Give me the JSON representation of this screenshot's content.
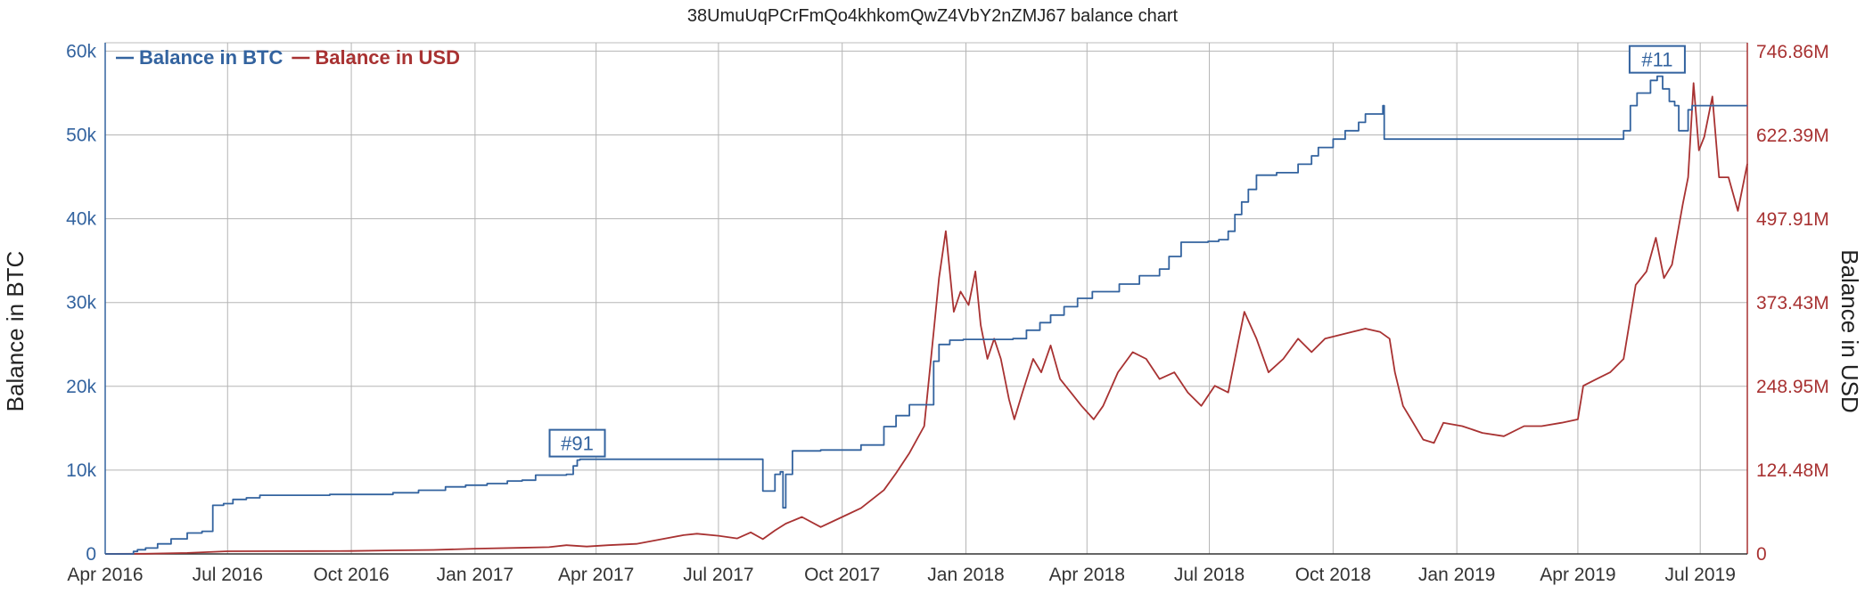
{
  "chart_data": {
    "type": "line",
    "title": "38UmuUqPCrFmQo4khkomQwZ4VbY2nZMJ67 balance chart",
    "x_range": [
      "2016-04-01",
      "2019-08-05"
    ],
    "grid": true,
    "legend_position": "top-left",
    "y_left": {
      "label": "Balance in BTC",
      "range": [
        0,
        61000
      ],
      "ticks": [
        0,
        10000,
        20000,
        30000,
        40000,
        50000,
        60000
      ],
      "tick_labels": [
        "0",
        "10k",
        "20k",
        "30k",
        "40k",
        "50k",
        "60k"
      ],
      "color": "#33639f"
    },
    "y_right": {
      "label": "Balance in USD",
      "range": [
        0,
        760000000
      ],
      "ticks": [
        0,
        124480000,
        248950000,
        373430000,
        497910000,
        622390000,
        746860000
      ],
      "tick_labels": [
        "0",
        "124.48M",
        "248.95M",
        "373.43M",
        "497.91M",
        "622.39M",
        "746.86M"
      ],
      "color": "#a83232"
    },
    "x_ticks": [
      {
        "date": "2016-04-01",
        "label": "Apr 2016"
      },
      {
        "date": "2016-07-01",
        "label": "Jul 2016"
      },
      {
        "date": "2016-10-01",
        "label": "Oct 2016"
      },
      {
        "date": "2017-01-01",
        "label": "Jan 2017"
      },
      {
        "date": "2017-04-01",
        "label": "Apr 2017"
      },
      {
        "date": "2017-07-01",
        "label": "Jul 2017"
      },
      {
        "date": "2017-10-01",
        "label": "Oct 2017"
      },
      {
        "date": "2018-01-01",
        "label": "Jan 2018"
      },
      {
        "date": "2018-04-01",
        "label": "Apr 2018"
      },
      {
        "date": "2018-07-01",
        "label": "Jul 2018"
      },
      {
        "date": "2018-10-01",
        "label": "Oct 2018"
      },
      {
        "date": "2019-01-01",
        "label": "Jan 2019"
      },
      {
        "date": "2019-04-01",
        "label": "Apr 2019"
      },
      {
        "date": "2019-07-01",
        "label": "Jul 2019"
      }
    ],
    "series": [
      {
        "name": "Balance in BTC",
        "axis": "left",
        "color": "#33639f",
        "step": true,
        "points": [
          [
            "2016-04-01",
            0
          ],
          [
            "2016-04-20",
            0
          ],
          [
            "2016-04-22",
            300
          ],
          [
            "2016-04-25",
            500
          ],
          [
            "2016-05-01",
            700
          ],
          [
            "2016-05-10",
            1200
          ],
          [
            "2016-05-20",
            1800
          ],
          [
            "2016-06-01",
            2500
          ],
          [
            "2016-06-12",
            2700
          ],
          [
            "2016-06-20",
            5800
          ],
          [
            "2016-06-28",
            6000
          ],
          [
            "2016-07-05",
            6500
          ],
          [
            "2016-07-15",
            6700
          ],
          [
            "2016-07-25",
            7000
          ],
          [
            "2016-08-10",
            7000
          ],
          [
            "2016-09-15",
            7100
          ],
          [
            "2016-10-20",
            7100
          ],
          [
            "2016-11-01",
            7300
          ],
          [
            "2016-11-20",
            7600
          ],
          [
            "2016-12-10",
            8000
          ],
          [
            "2016-12-25",
            8200
          ],
          [
            "2017-01-10",
            8400
          ],
          [
            "2017-01-25",
            8700
          ],
          [
            "2017-02-05",
            8800
          ],
          [
            "2017-02-15",
            9400
          ],
          [
            "2017-03-10",
            9500
          ],
          [
            "2017-03-15",
            10500
          ],
          [
            "2017-03-18",
            11200
          ],
          [
            "2017-03-20",
            11300
          ],
          [
            "2017-05-15",
            11300
          ],
          [
            "2017-08-01",
            11300
          ],
          [
            "2017-08-03",
            7500
          ],
          [
            "2017-08-10",
            7500
          ],
          [
            "2017-08-12",
            9500
          ],
          [
            "2017-08-16",
            9800
          ],
          [
            "2017-08-18",
            5500
          ],
          [
            "2017-08-20",
            9500
          ],
          [
            "2017-08-25",
            12300
          ],
          [
            "2017-09-15",
            12400
          ],
          [
            "2017-10-10",
            12400
          ],
          [
            "2017-10-15",
            13000
          ],
          [
            "2017-11-01",
            15200
          ],
          [
            "2017-11-10",
            16500
          ],
          [
            "2017-11-20",
            17800
          ],
          [
            "2017-12-05",
            17800
          ],
          [
            "2017-12-08",
            23000
          ],
          [
            "2017-12-12",
            25000
          ],
          [
            "2017-12-20",
            25500
          ],
          [
            "2017-12-30",
            25600
          ],
          [
            "2018-02-05",
            25700
          ],
          [
            "2018-02-15",
            26700
          ],
          [
            "2018-02-25",
            27600
          ],
          [
            "2018-03-05",
            28500
          ],
          [
            "2018-03-15",
            29500
          ],
          [
            "2018-03-25",
            30500
          ],
          [
            "2018-04-05",
            31300
          ],
          [
            "2018-04-25",
            32200
          ],
          [
            "2018-05-10",
            33200
          ],
          [
            "2018-05-25",
            34000
          ],
          [
            "2018-06-01",
            35500
          ],
          [
            "2018-06-10",
            37200
          ],
          [
            "2018-06-30",
            37300
          ],
          [
            "2018-07-08",
            37500
          ],
          [
            "2018-07-15",
            38500
          ],
          [
            "2018-07-20",
            40500
          ],
          [
            "2018-07-25",
            42000
          ],
          [
            "2018-07-30",
            43500
          ],
          [
            "2018-08-05",
            45200
          ],
          [
            "2018-08-20",
            45500
          ],
          [
            "2018-09-05",
            46500
          ],
          [
            "2018-09-15",
            47500
          ],
          [
            "2018-09-20",
            48500
          ],
          [
            "2018-10-01",
            49500
          ],
          [
            "2018-10-10",
            50500
          ],
          [
            "2018-10-20",
            51500
          ],
          [
            "2018-10-25",
            52500
          ],
          [
            "2018-11-05",
            52500
          ],
          [
            "2018-11-07",
            53500
          ],
          [
            "2018-11-08",
            49500
          ],
          [
            "2019-04-15",
            49500
          ],
          [
            "2019-05-01",
            49500
          ],
          [
            "2019-05-05",
            50500
          ],
          [
            "2019-05-10",
            53500
          ],
          [
            "2019-05-15",
            55000
          ],
          [
            "2019-05-25",
            56500
          ],
          [
            "2019-05-30",
            57000
          ],
          [
            "2019-06-03",
            55500
          ],
          [
            "2019-06-08",
            54000
          ],
          [
            "2019-06-12",
            53500
          ],
          [
            "2019-06-15",
            50500
          ],
          [
            "2019-06-22",
            53000
          ],
          [
            "2019-06-25",
            53500
          ],
          [
            "2019-08-05",
            53500
          ]
        ]
      },
      {
        "name": "Balance in USD",
        "axis": "right",
        "color": "#a83232",
        "step": false,
        "points": [
          [
            "2016-04-01",
            0
          ],
          [
            "2016-05-01",
            300000
          ],
          [
            "2016-06-01",
            1500000
          ],
          [
            "2016-07-01",
            4000000
          ],
          [
            "2016-08-01",
            4100000
          ],
          [
            "2016-09-01",
            4300000
          ],
          [
            "2016-10-01",
            4400000
          ],
          [
            "2016-11-01",
            5300000
          ],
          [
            "2016-12-01",
            6000000
          ],
          [
            "2017-01-01",
            7800000
          ],
          [
            "2017-02-01",
            9000000
          ],
          [
            "2017-02-25",
            10000000
          ],
          [
            "2017-03-10",
            13000000
          ],
          [
            "2017-03-25",
            11000000
          ],
          [
            "2017-04-10",
            13000000
          ],
          [
            "2017-05-01",
            15000000
          ],
          [
            "2017-05-20",
            22000000
          ],
          [
            "2017-06-05",
            28000000
          ],
          [
            "2017-06-15",
            30000000
          ],
          [
            "2017-07-01",
            27000000
          ],
          [
            "2017-07-15",
            23000000
          ],
          [
            "2017-07-25",
            32000000
          ],
          [
            "2017-08-03",
            22000000
          ],
          [
            "2017-08-12",
            35000000
          ],
          [
            "2017-08-20",
            45000000
          ],
          [
            "2017-09-01",
            55000000
          ],
          [
            "2017-09-15",
            40000000
          ],
          [
            "2017-10-01",
            55000000
          ],
          [
            "2017-10-15",
            68000000
          ],
          [
            "2017-11-01",
            95000000
          ],
          [
            "2017-11-10",
            120000000
          ],
          [
            "2017-11-20",
            150000000
          ],
          [
            "2017-12-01",
            190000000
          ],
          [
            "2017-12-08",
            330000000
          ],
          [
            "2017-12-12",
            410000000
          ],
          [
            "2017-12-17",
            480000000
          ],
          [
            "2017-12-23",
            360000000
          ],
          [
            "2017-12-28",
            390000000
          ],
          [
            "2018-01-03",
            370000000
          ],
          [
            "2018-01-08",
            420000000
          ],
          [
            "2018-01-12",
            340000000
          ],
          [
            "2018-01-17",
            290000000
          ],
          [
            "2018-01-22",
            320000000
          ],
          [
            "2018-01-27",
            290000000
          ],
          [
            "2018-02-02",
            230000000
          ],
          [
            "2018-02-06",
            200000000
          ],
          [
            "2018-02-12",
            240000000
          ],
          [
            "2018-02-20",
            290000000
          ],
          [
            "2018-02-26",
            270000000
          ],
          [
            "2018-03-05",
            310000000
          ],
          [
            "2018-03-12",
            260000000
          ],
          [
            "2018-03-20",
            240000000
          ],
          [
            "2018-03-28",
            220000000
          ],
          [
            "2018-04-06",
            200000000
          ],
          [
            "2018-04-13",
            220000000
          ],
          [
            "2018-04-24",
            270000000
          ],
          [
            "2018-05-05",
            300000000
          ],
          [
            "2018-05-15",
            290000000
          ],
          [
            "2018-05-25",
            260000000
          ],
          [
            "2018-06-05",
            270000000
          ],
          [
            "2018-06-15",
            240000000
          ],
          [
            "2018-06-25",
            220000000
          ],
          [
            "2018-07-05",
            250000000
          ],
          [
            "2018-07-15",
            240000000
          ],
          [
            "2018-07-23",
            320000000
          ],
          [
            "2018-07-27",
            360000000
          ],
          [
            "2018-08-05",
            320000000
          ],
          [
            "2018-08-14",
            270000000
          ],
          [
            "2018-08-25",
            290000000
          ],
          [
            "2018-09-05",
            320000000
          ],
          [
            "2018-09-15",
            300000000
          ],
          [
            "2018-09-25",
            320000000
          ],
          [
            "2018-10-05",
            325000000
          ],
          [
            "2018-10-15",
            330000000
          ],
          [
            "2018-10-25",
            335000000
          ],
          [
            "2018-11-05",
            330000000
          ],
          [
            "2018-11-12",
            320000000
          ],
          [
            "2018-11-16",
            270000000
          ],
          [
            "2018-11-22",
            220000000
          ],
          [
            "2018-11-28",
            200000000
          ],
          [
            "2018-12-07",
            170000000
          ],
          [
            "2018-12-15",
            165000000
          ],
          [
            "2018-12-22",
            195000000
          ],
          [
            "2019-01-05",
            190000000
          ],
          [
            "2019-01-20",
            180000000
          ],
          [
            "2019-02-05",
            175000000
          ],
          [
            "2019-02-20",
            190000000
          ],
          [
            "2019-03-05",
            190000000
          ],
          [
            "2019-03-20",
            195000000
          ],
          [
            "2019-04-01",
            200000000
          ],
          [
            "2019-04-05",
            250000000
          ],
          [
            "2019-04-15",
            260000000
          ],
          [
            "2019-04-25",
            270000000
          ],
          [
            "2019-05-05",
            290000000
          ],
          [
            "2019-05-14",
            400000000
          ],
          [
            "2019-05-22",
            420000000
          ],
          [
            "2019-05-29",
            470000000
          ],
          [
            "2019-06-04",
            410000000
          ],
          [
            "2019-06-10",
            430000000
          ],
          [
            "2019-06-18",
            520000000
          ],
          [
            "2019-06-22",
            560000000
          ],
          [
            "2019-06-26",
            700000000
          ],
          [
            "2019-06-30",
            600000000
          ],
          [
            "2019-07-04",
            620000000
          ],
          [
            "2019-07-10",
            680000000
          ],
          [
            "2019-07-15",
            560000000
          ],
          [
            "2019-07-22",
            560000000
          ],
          [
            "2019-07-29",
            510000000
          ],
          [
            "2019-08-05",
            580000000
          ]
        ]
      }
    ],
    "annotations": [
      {
        "label": "#91",
        "date": "2017-03-18",
        "value": 11200,
        "axis": "left"
      },
      {
        "label": "#11",
        "date": "2019-05-30",
        "value": 57000,
        "axis": "left"
      }
    ]
  }
}
